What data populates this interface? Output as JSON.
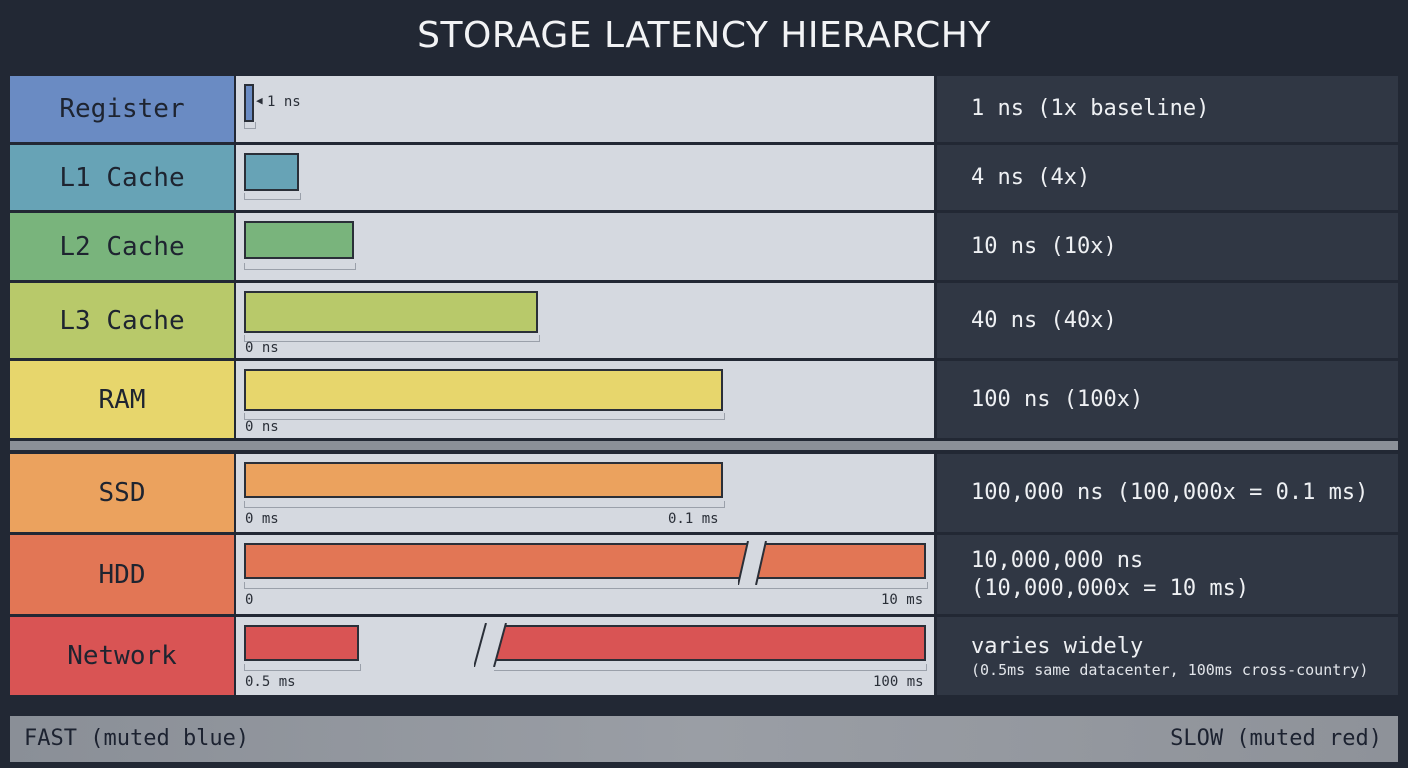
{
  "title": "STORAGE LATENCY HIERARCHY",
  "rows": [
    {
      "label": "Register",
      "color": "#6a8bc3",
      "value_ns": 1,
      "info": "1 ns (1x baseline)",
      "bar_annotation": "1 ns"
    },
    {
      "label": "L1 Cache",
      "color": "#67a3b6",
      "value_ns": 4,
      "info": "4 ns (4x)"
    },
    {
      "label": "L2 Cache",
      "color": "#79b47c",
      "value_ns": 10,
      "info": "10 ns (10x)"
    },
    {
      "label": "L3 Cache",
      "color": "#b8c96a",
      "value_ns": 40,
      "info": "40 ns (40x)",
      "scale_start": "0 ns"
    },
    {
      "label": "RAM",
      "color": "#e7d66c",
      "value_ns": 100,
      "info": "100 ns (100x)",
      "scale_start": "0 ns"
    },
    {
      "label": "SSD",
      "color": "#eba25e",
      "value_ns": 100000,
      "info": "100,000 ns (100,000x = 0.1 ms)",
      "scale_start": "0 ms",
      "scale_end": "0.1 ms"
    },
    {
      "label": "HDD",
      "color": "#e27655",
      "value_ns": 10000000,
      "info_line1": "10,000,000 ns",
      "info_line2": "(10,000,000x = 10 ms)",
      "scale_start": "0",
      "scale_end": "10 ms",
      "axis_break": true
    },
    {
      "label": "Network",
      "color": "#d95454",
      "value_range_ms": [
        0.5,
        100
      ],
      "info_line1": "varies widely",
      "info_sub": "(0.5ms same datacenter, 100ms cross-country)",
      "scale_start": "0.5 ms",
      "scale_end": "100 ms",
      "axis_break": true
    }
  ],
  "footer": {
    "left": "FAST (muted blue)",
    "right": "SLOW (muted red)"
  }
}
